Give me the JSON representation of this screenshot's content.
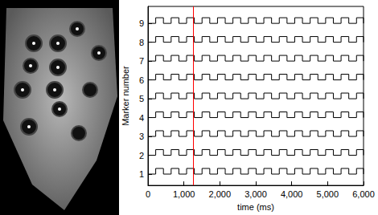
{
  "chart_data": {
    "type": "line",
    "x_label": "time (ms)",
    "y_label": "Marker number",
    "x": [
      0,
      215,
      430,
      645,
      860,
      1075,
      1290,
      1505,
      1720,
      1935,
      2150,
      2365,
      2580,
      2795,
      3010,
      3225,
      3440,
      3655,
      3870,
      4085,
      4300,
      4515,
      4730,
      4945,
      5160,
      5375,
      5590,
      5805,
      6000
    ],
    "series": [
      {
        "color": "#000000",
        "values": [
          1,
          1.3,
          1,
          1.3,
          1,
          1.3,
          1,
          1.3,
          1,
          1.3,
          1,
          1.3,
          1,
          1.3,
          1,
          1.3,
          1,
          1.3,
          1,
          1.3,
          1,
          1.3,
          1,
          1.3,
          1,
          1.3,
          1,
          1.3,
          1
        ]
      },
      {
        "color": "#000000",
        "values": [
          2,
          2.3,
          2,
          2.3,
          2,
          2.3,
          2,
          2.3,
          2,
          2.3,
          2,
          2.3,
          2,
          2.3,
          2,
          2.3,
          2,
          2.3,
          2,
          2.3,
          2,
          2.3,
          2,
          2.3,
          2,
          2.3,
          2,
          2.3,
          2
        ]
      },
      {
        "color": "#000000",
        "values": [
          3,
          3.3,
          3,
          3.3,
          3,
          3.3,
          3,
          3.3,
          3,
          3.3,
          3,
          3.3,
          3,
          3.3,
          3,
          3.3,
          3,
          3.3,
          3,
          3.3,
          3,
          3.3,
          3,
          3.3,
          3,
          3.3,
          3,
          3.3,
          3
        ]
      },
      {
        "color": "#000000",
        "values": [
          4,
          4.3,
          4,
          4.3,
          4,
          4.3,
          4,
          4.3,
          4,
          4.3,
          4,
          4.3,
          4,
          4.3,
          4,
          4.3,
          4,
          4.3,
          4,
          4.3,
          4,
          4.3,
          4,
          4.3,
          4,
          4.3,
          4,
          4.3,
          4
        ]
      },
      {
        "color": "#000000",
        "values": [
          5,
          5.3,
          5,
          5.3,
          5,
          5.3,
          5,
          5.3,
          5,
          5.3,
          5,
          5.3,
          5,
          5.3,
          5,
          5.3,
          5,
          5.3,
          5,
          5.3,
          5,
          5.3,
          5,
          5.3,
          5,
          5.3,
          5,
          5.3,
          5
        ]
      },
      {
        "color": "#000000",
        "values": [
          6,
          6.3,
          6,
          6.3,
          6,
          6.3,
          6,
          6.3,
          6,
          6.3,
          6,
          6.3,
          6,
          6.3,
          6,
          6.3,
          6,
          6.3,
          6,
          6.3,
          6,
          6.3,
          6,
          6.3,
          6,
          6.3,
          6,
          6.3,
          6
        ]
      },
      {
        "color": "#000000",
        "values": [
          7,
          7.3,
          7,
          7.3,
          7,
          7.3,
          7,
          7.3,
          7,
          7.3,
          7,
          7.3,
          7,
          7.3,
          7,
          7.3,
          7,
          7.3,
          7,
          7.3,
          7,
          7.3,
          7,
          7.3,
          7,
          7.3,
          7,
          7.3,
          7
        ]
      },
      {
        "color": "#000000",
        "values": [
          8,
          8.3,
          8,
          8.3,
          8,
          8.3,
          8,
          8.3,
          8,
          8.3,
          8,
          8.3,
          8,
          8.3,
          8,
          8.3,
          8,
          8.3,
          8,
          8.3,
          8,
          8.3,
          8,
          8.3,
          8,
          8.3,
          8,
          8.3,
          8
        ]
      },
      {
        "color": "#000000",
        "values": [
          9,
          9.3,
          9,
          9.3,
          9,
          9.3,
          9,
          9.3,
          9,
          9.3,
          9,
          9.3,
          9,
          9.3,
          9,
          9.3,
          9,
          9.3,
          9,
          9.3,
          9,
          9.3,
          9,
          9.3,
          9,
          9.3,
          9,
          9.3,
          9
        ]
      }
    ],
    "reference_line": {
      "x": 1250,
      "color": "#ff0000"
    },
    "xlim": [
      0,
      6000
    ],
    "xticks": [
      0,
      1000,
      2000,
      3000,
      4000,
      5000,
      6000
    ],
    "ylim": [
      0.4,
      9.9
    ],
    "yticks": [
      1,
      2,
      3,
      4,
      5,
      6,
      7,
      8,
      9
    ],
    "grid": false
  }
}
